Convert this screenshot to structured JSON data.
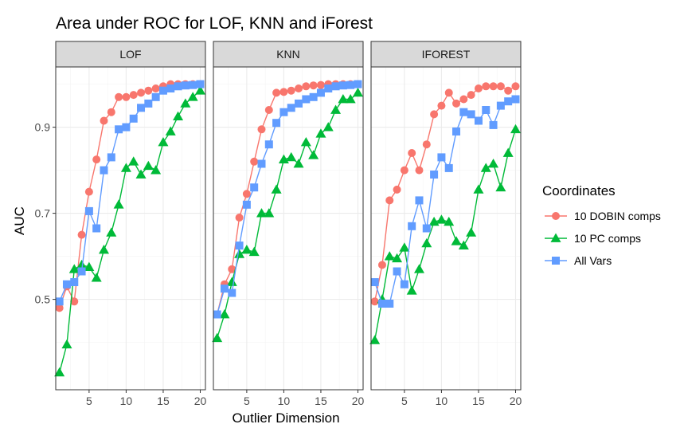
{
  "chart_data": {
    "type": "line",
    "title": "Area under ROC for LOF, KNN and iForest",
    "xlabel": "Outlier Dimension",
    "ylabel": "AUC",
    "xlim": [
      0.5,
      20.7
    ],
    "ylim": [
      0.29,
      1.04
    ],
    "x_ticks": [
      5,
      10,
      15,
      20
    ],
    "y_ticks": [
      0.5,
      0.7,
      0.9
    ],
    "legend": {
      "title": "Coordinates",
      "placement": "right",
      "entries": [
        "10 DOBIN comps",
        "10 PC comps",
        "All Vars"
      ]
    },
    "colors": {
      "dobin": "#F8766D",
      "pc": "#00BA38",
      "allvars": "#619CFF"
    },
    "panels": [
      {
        "label": "LOF",
        "series": [
          {
            "name": "10 DOBIN comps",
            "x": [
              1,
              2,
              3,
              4,
              5,
              6,
              7,
              8,
              9,
              10,
              11,
              12,
              13,
              14,
              15,
              16,
              17,
              18,
              19,
              20
            ],
            "y": [
              0.48,
              0.53,
              0.495,
              0.65,
              0.75,
              0.825,
              0.915,
              0.935,
              0.97,
              0.97,
              0.975,
              0.98,
              0.985,
              0.99,
              0.995,
              1.0,
              1.0,
              1.0,
              1.0,
              1.0
            ]
          },
          {
            "name": "10 PC comps",
            "x": [
              1,
              2,
              3,
              4,
              5,
              6,
              7,
              8,
              9,
              10,
              11,
              12,
              13,
              14,
              15,
              16,
              17,
              18,
              19,
              20
            ],
            "y": [
              0.33,
              0.395,
              0.57,
              0.58,
              0.575,
              0.55,
              0.615,
              0.655,
              0.72,
              0.805,
              0.82,
              0.79,
              0.81,
              0.8,
              0.865,
              0.89,
              0.925,
              0.955,
              0.97,
              0.985
            ]
          },
          {
            "name": "All Vars",
            "x": [
              1,
              2,
              3,
              4,
              5,
              6,
              7,
              8,
              9,
              10,
              11,
              12,
              13,
              14,
              15,
              16,
              17,
              18,
              19,
              20
            ],
            "y": [
              0.495,
              0.535,
              0.54,
              0.565,
              0.705,
              0.665,
              0.8,
              0.83,
              0.895,
              0.9,
              0.92,
              0.945,
              0.955,
              0.97,
              0.985,
              0.99,
              0.995,
              0.997,
              0.998,
              1.0
            ]
          }
        ]
      },
      {
        "label": "KNN",
        "series": [
          {
            "name": "10 DOBIN comps",
            "x": [
              1,
              2,
              3,
              4,
              5,
              6,
              7,
              8,
              9,
              10,
              11,
              12,
              13,
              14,
              15,
              16,
              17,
              18,
              19,
              20
            ],
            "y": [
              0.465,
              0.535,
              0.57,
              0.69,
              0.745,
              0.82,
              0.895,
              0.94,
              0.98,
              0.982,
              0.985,
              0.99,
              0.995,
              0.997,
              0.998,
              1.0,
              1.0,
              1.0,
              1.0,
              1.0
            ]
          },
          {
            "name": "10 PC comps",
            "x": [
              1,
              2,
              3,
              4,
              5,
              6,
              7,
              8,
              9,
              10,
              11,
              12,
              13,
              14,
              15,
              16,
              17,
              18,
              19,
              20
            ],
            "y": [
              0.41,
              0.465,
              0.54,
              0.605,
              0.615,
              0.61,
              0.7,
              0.7,
              0.755,
              0.825,
              0.83,
              0.815,
              0.865,
              0.835,
              0.885,
              0.9,
              0.94,
              0.965,
              0.965,
              0.98
            ]
          },
          {
            "name": "All Vars",
            "x": [
              1,
              2,
              3,
              4,
              5,
              6,
              7,
              8,
              9,
              10,
              11,
              12,
              13,
              14,
              15,
              16,
              17,
              18,
              19,
              20
            ],
            "y": [
              0.465,
              0.525,
              0.515,
              0.625,
              0.72,
              0.76,
              0.815,
              0.86,
              0.91,
              0.935,
              0.945,
              0.955,
              0.965,
              0.97,
              0.98,
              0.99,
              0.995,
              0.997,
              0.998,
              1.0
            ]
          }
        ]
      },
      {
        "label": "IFOREST",
        "series": [
          {
            "name": "10 DOBIN comps",
            "x": [
              1,
              2,
              3,
              4,
              5,
              6,
              7,
              8,
              9,
              10,
              11,
              12,
              13,
              14,
              15,
              16,
              17,
              18,
              19,
              20
            ],
            "y": [
              0.495,
              0.58,
              0.73,
              0.755,
              0.8,
              0.84,
              0.8,
              0.86,
              0.93,
              0.95,
              0.98,
              0.955,
              0.965,
              0.975,
              0.99,
              0.995,
              0.995,
              0.995,
              0.985,
              0.995
            ]
          },
          {
            "name": "10 PC comps",
            "x": [
              1,
              2,
              3,
              4,
              5,
              6,
              7,
              8,
              9,
              10,
              11,
              12,
              13,
              14,
              15,
              16,
              17,
              18,
              19,
              20
            ],
            "y": [
              0.405,
              0.5,
              0.6,
              0.595,
              0.62,
              0.52,
              0.57,
              0.63,
              0.68,
              0.685,
              0.68,
              0.635,
              0.625,
              0.655,
              0.755,
              0.805,
              0.815,
              0.76,
              0.84,
              0.895
            ]
          },
          {
            "name": "All Vars",
            "x": [
              1,
              2,
              3,
              4,
              5,
              6,
              7,
              8,
              9,
              10,
              11,
              12,
              13,
              14,
              15,
              16,
              17,
              18,
              19,
              20
            ],
            "y": [
              0.54,
              0.49,
              0.49,
              0.565,
              0.535,
              0.67,
              0.73,
              0.665,
              0.79,
              0.83,
              0.805,
              0.89,
              0.935,
              0.93,
              0.915,
              0.94,
              0.905,
              0.95,
              0.96,
              0.965
            ]
          }
        ]
      }
    ]
  }
}
